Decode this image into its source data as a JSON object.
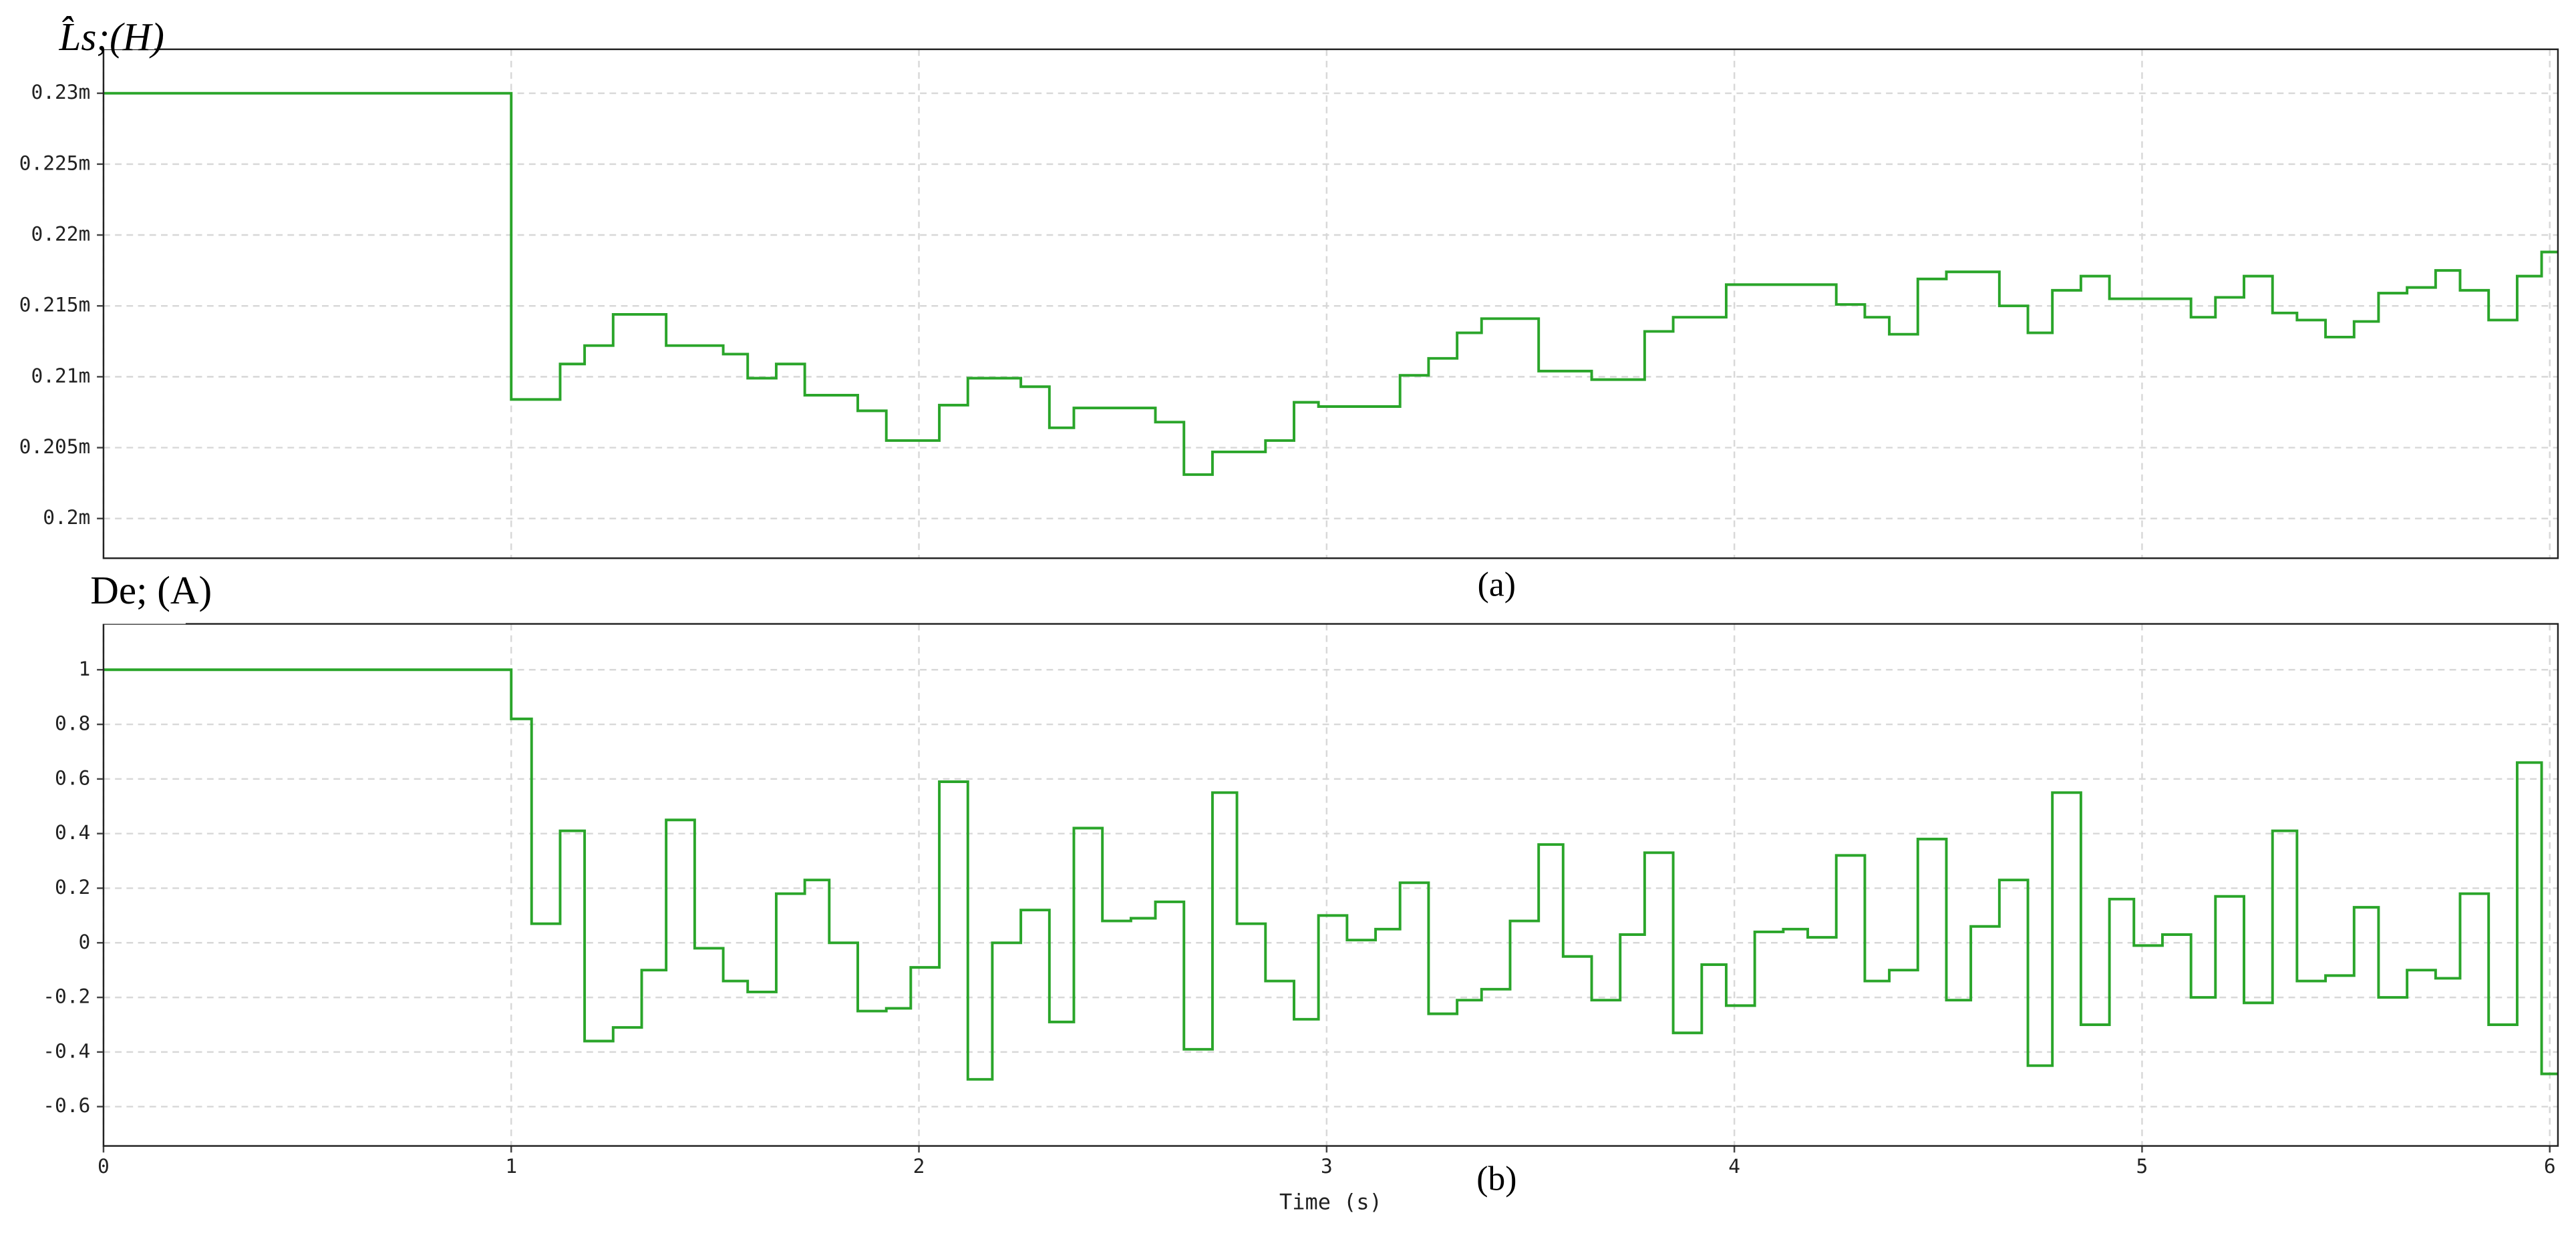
{
  "chart_data": [
    {
      "type": "line",
      "step": "post",
      "y_label": "L̂s;(H)",
      "caption": "(a)",
      "color": "#2aa52a",
      "grid": true,
      "xtick_labels": false,
      "xlim": [
        0,
        6.02
      ],
      "ylim": [
        0.1972,
        0.2331
      ],
      "xticks": [
        0,
        1,
        2,
        3,
        4,
        5,
        6
      ],
      "yticks": [
        {
          "value": 0.2,
          "label": "0.2m"
        },
        {
          "value": 0.205,
          "label": "0.205m"
        },
        {
          "value": 0.21,
          "label": "0.21m"
        },
        {
          "value": 0.215,
          "label": "0.215m"
        },
        {
          "value": 0.22,
          "label": "0.22m"
        },
        {
          "value": 0.225,
          "label": "0.225m"
        },
        {
          "value": 0.23,
          "label": "0.23m"
        }
      ],
      "x": [
        0,
        1,
        1.05,
        1.12,
        1.18,
        1.25,
        1.32,
        1.38,
        1.45,
        1.52,
        1.58,
        1.65,
        1.72,
        1.78,
        1.85,
        1.92,
        1.98,
        2.05,
        2.12,
        2.18,
        2.25,
        2.32,
        2.38,
        2.45,
        2.52,
        2.58,
        2.65,
        2.72,
        2.78,
        2.85,
        2.92,
        2.98,
        3.05,
        3.12,
        3.18,
        3.25,
        3.32,
        3.38,
        3.45,
        3.52,
        3.58,
        3.65,
        3.72,
        3.78,
        3.85,
        3.92,
        3.98,
        4.05,
        4.12,
        4.18,
        4.25,
        4.32,
        4.38,
        4.45,
        4.52,
        4.58,
        4.65,
        4.72,
        4.78,
        4.85,
        4.92,
        4.98,
        5.05,
        5.12,
        5.18,
        5.25,
        5.32,
        5.38,
        5.45,
        5.52,
        5.58,
        5.65,
        5.72,
        5.78,
        5.85,
        5.92,
        5.98
      ],
      "values": [
        0.23,
        0.2084,
        0.2084,
        0.2109,
        0.2122,
        0.2144,
        0.2144,
        0.2122,
        0.2122,
        0.2116,
        0.2099,
        0.2109,
        0.2087,
        0.2087,
        0.2076,
        0.2055,
        0.2055,
        0.208,
        0.2099,
        0.2099,
        0.2093,
        0.2064,
        0.2078,
        0.2078,
        0.2078,
        0.2068,
        0.2031,
        0.2047,
        0.2047,
        0.2055,
        0.2082,
        0.2079,
        0.2079,
        0.2079,
        0.2101,
        0.2113,
        0.2131,
        0.2141,
        0.2141,
        0.2104,
        0.2104,
        0.2098,
        0.2098,
        0.2132,
        0.2142,
        0.2142,
        0.2165,
        0.2165,
        0.2165,
        0.2165,
        0.2151,
        0.2142,
        0.213,
        0.2169,
        0.2174,
        0.2174,
        0.215,
        0.2131,
        0.2161,
        0.2171,
        0.2155,
        0.2155,
        0.2155,
        0.2142,
        0.2156,
        0.2171,
        0.2145,
        0.214,
        0.2128,
        0.2139,
        0.2159,
        0.2163,
        0.2175,
        0.2161,
        0.214,
        0.2171,
        0.2188
      ]
    },
    {
      "type": "line",
      "step": "post",
      "y_label": "De; (A)",
      "caption": "(b)",
      "x_label": "Time (s)",
      "color": "#2aa52a",
      "grid": true,
      "xtick_labels": true,
      "xlim": [
        0,
        6.02
      ],
      "ylim": [
        -0.744,
        1.168
      ],
      "xticks": [
        0,
        1,
        2,
        3,
        4,
        5,
        6
      ],
      "yticks": [
        -0.6,
        -0.4,
        -0.2,
        0,
        0.2,
        0.4,
        0.6,
        0.8,
        1
      ],
      "x": [
        0,
        1,
        1.05,
        1.12,
        1.18,
        1.25,
        1.32,
        1.38,
        1.45,
        1.52,
        1.58,
        1.65,
        1.72,
        1.78,
        1.85,
        1.92,
        1.98,
        2.05,
        2.12,
        2.18,
        2.25,
        2.32,
        2.38,
        2.45,
        2.52,
        2.58,
        2.65,
        2.72,
        2.78,
        2.85,
        2.92,
        2.98,
        3.05,
        3.12,
        3.18,
        3.25,
        3.32,
        3.38,
        3.45,
        3.52,
        3.58,
        3.65,
        3.72,
        3.78,
        3.85,
        3.92,
        3.98,
        4.05,
        4.12,
        4.18,
        4.25,
        4.32,
        4.38,
        4.45,
        4.52,
        4.58,
        4.65,
        4.72,
        4.78,
        4.85,
        4.92,
        4.98,
        5.05,
        5.12,
        5.18,
        5.25,
        5.32,
        5.38,
        5.45,
        5.52,
        5.58,
        5.65,
        5.72,
        5.78,
        5.85,
        5.92,
        5.98
      ],
      "values": [
        1,
        0.82,
        0.07,
        0.41,
        -0.36,
        -0.31,
        -0.1,
        0.45,
        -0.02,
        -0.14,
        -0.18,
        0.18,
        0.23,
        0.0,
        -0.25,
        -0.24,
        -0.09,
        0.59,
        -0.5,
        0.0,
        0.12,
        -0.29,
        0.42,
        0.08,
        0.09,
        0.15,
        -0.39,
        0.55,
        0.07,
        -0.14,
        -0.28,
        0.1,
        0.01,
        0.05,
        0.22,
        -0.26,
        -0.21,
        -0.17,
        0.08,
        0.36,
        -0.05,
        -0.21,
        0.03,
        0.33,
        -0.33,
        -0.08,
        -0.23,
        0.04,
        0.05,
        0.02,
        0.32,
        -0.14,
        -0.1,
        0.38,
        -0.21,
        0.06,
        0.23,
        -0.45,
        0.55,
        -0.3,
        0.16,
        -0.01,
        0.03,
        -0.2,
        0.17,
        -0.22,
        0.41,
        -0.14,
        -0.12,
        0.13,
        -0.2,
        -0.1,
        -0.13,
        0.18,
        -0.3,
        0.66,
        -0.48
      ]
    }
  ]
}
